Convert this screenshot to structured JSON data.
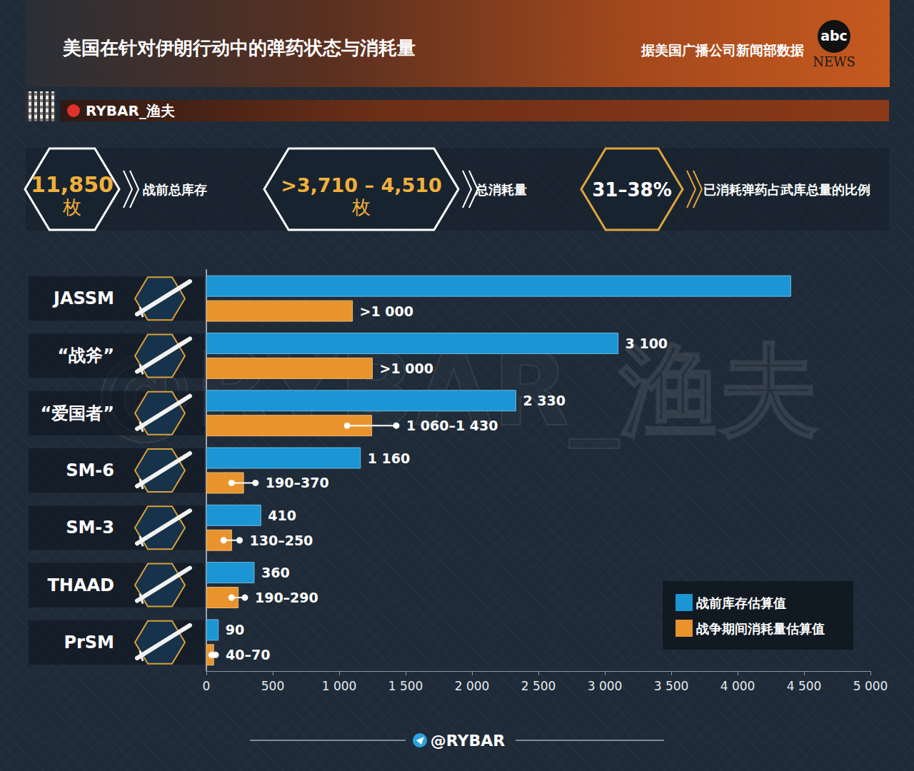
{
  "header": {
    "title": "美国在针对伊朗行动中的弹药状态与消耗量",
    "source": "据美国广播公司新闻部数据",
    "logo": [
      "abc",
      "NEWS"
    ],
    "channel": "RYBAR_渔夫"
  },
  "stats": [
    {
      "value": "11,850",
      "unit": "枚",
      "label": "战前总库存"
    },
    {
      "value": ">3,710 – 4,510",
      "unit": "枚",
      "label": "总消耗量"
    },
    {
      "value": "31–38%",
      "label": "已消耗弹药占武库总量的比例"
    }
  ],
  "watermark": "@RYBAR_渔夫",
  "footer": "@RYBAR",
  "chart_data": {
    "type": "bar",
    "orientation": "horizontal",
    "categories": [
      "JASSM",
      "“战斧”",
      "“爱国者”",
      "SM-6",
      "SM-3",
      "THAAD",
      "PrSM"
    ],
    "series": [
      {
        "name": "战前库存估算值",
        "color": "#1b95d4",
        "values": [
          4400,
          3100,
          2330,
          1160,
          410,
          360,
          90
        ],
        "value_labels": [
          null,
          "3 100",
          "2 330",
          "1 160",
          "410",
          "360",
          "90"
        ]
      },
      {
        "name": "战争期间消耗量估算值",
        "color": "#e8932c",
        "values": [
          1100,
          1250,
          1245,
          280,
          190,
          240,
          55
        ],
        "value_labels": [
          ">1 000",
          ">1 000",
          "1 060–1 430",
          "190–370",
          "130–250",
          "190–290",
          "40–70"
        ],
        "ranges": [
          null,
          null,
          [
            1060,
            1430
          ],
          [
            190,
            370
          ],
          [
            130,
            250
          ],
          [
            190,
            290
          ],
          [
            40,
            70
          ]
        ]
      }
    ],
    "xlim": [
      0,
      5000
    ],
    "xticks": [
      0,
      500,
      {
        "value": 1000,
        "label": "1 000"
      },
      {
        "value": 1500,
        "label": "1 500"
      },
      {
        "value": 2000,
        "label": "2 000"
      },
      {
        "value": 2500,
        "label": "2 500"
      },
      {
        "value": 3000,
        "label": "3 000"
      },
      {
        "value": 3500,
        "label": "3 500"
      },
      {
        "value": 4000,
        "label": "4 000"
      },
      {
        "value": 4500,
        "label": "4 500"
      },
      {
        "value": 5000,
        "label": "5 000"
      }
    ],
    "grid": false,
    "legend": "lower right",
    "data_labels": true
  }
}
